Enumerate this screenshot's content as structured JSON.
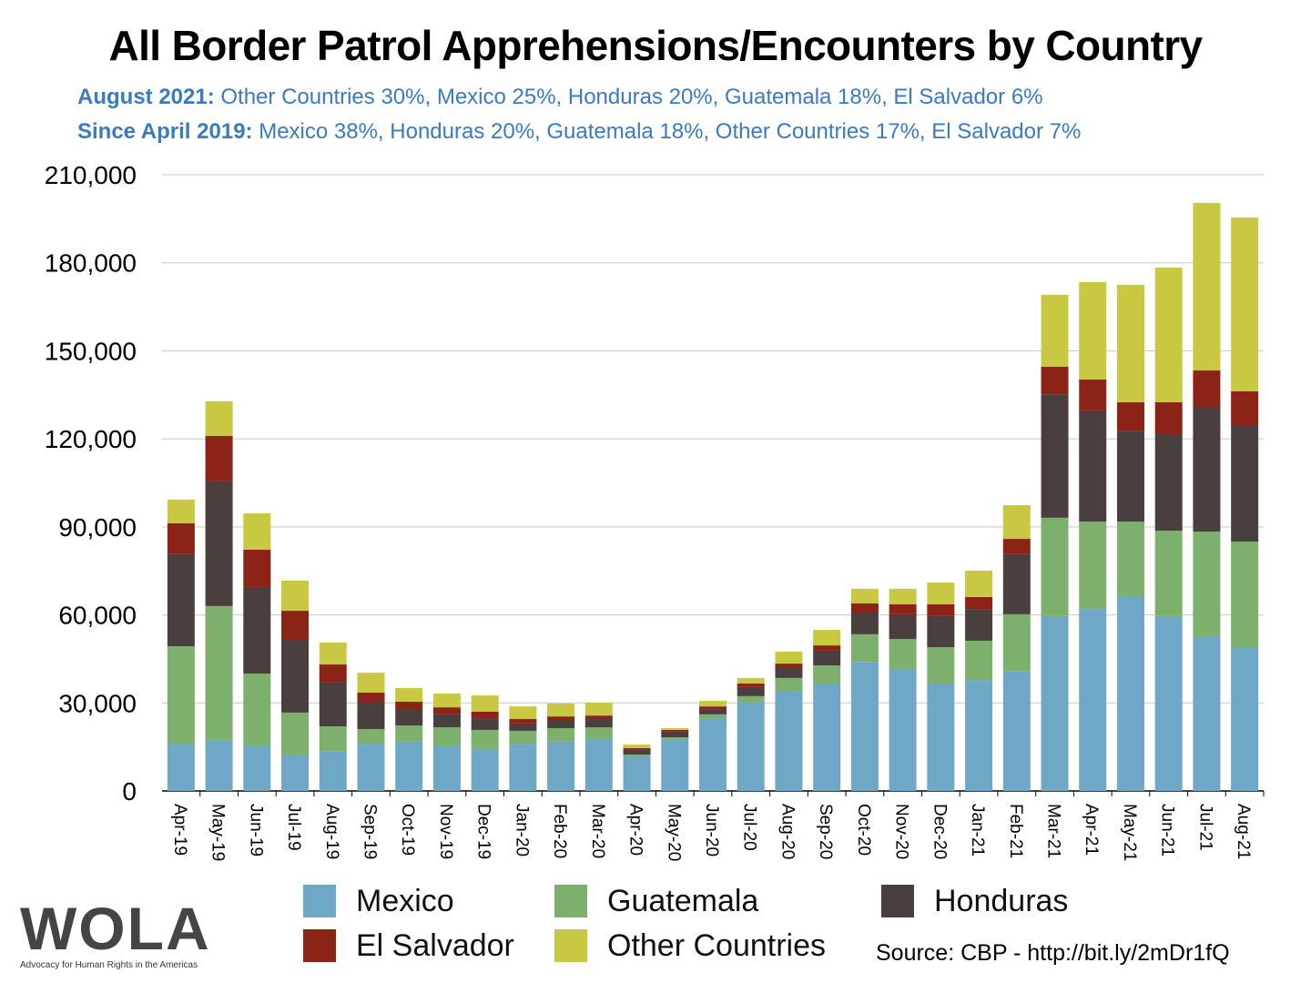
{
  "title": "All Border Patrol Apprehensions/Encounters by Country",
  "subtitles": [
    {
      "label": "August 2021:",
      "text": "Other Countries 30%, Mexico 25%, Honduras 20%, Guatemala 18%, El Salvador 6%"
    },
    {
      "label": "Since April 2019:",
      "text": "Mexico 38%, Honduras 20%, Guatemala 18%, Other Countries 17%, El Salvador 7%"
    }
  ],
  "source": "Source: CBP - http://bit.ly/2mDr1fQ",
  "logo": {
    "text": "WOLA",
    "tagline": "Advocacy for Human Rights in the Americas"
  },
  "chart_data": {
    "type": "bar",
    "stacked": true,
    "ylim": [
      0,
      210000
    ],
    "yticks": [
      0,
      30000,
      60000,
      90000,
      120000,
      150000,
      180000,
      210000
    ],
    "ytick_labels": [
      "0",
      "30,000",
      "60,000",
      "90,000",
      "120,000",
      "150,000",
      "180,000",
      "210,000"
    ],
    "grid": true,
    "legend_position": "bottom",
    "categories": [
      "Apr-19",
      "May-19",
      "Jun-19",
      "Jul-19",
      "Aug-19",
      "Sep-19",
      "Oct-19",
      "Nov-19",
      "Dec-19",
      "Jan-20",
      "Feb-20",
      "Mar-20",
      "Apr-20",
      "May-20",
      "Jun-20",
      "Jul-20",
      "Aug-20",
      "Sep-20",
      "Oct-20",
      "Nov-20",
      "Dec-20",
      "Jan-21",
      "Feb-21",
      "Mar-21",
      "Apr-21",
      "May-21",
      "Jun-21",
      "Jul-21",
      "Aug-21"
    ],
    "series": [
      {
        "name": "Mexico",
        "color": "#6fa7c7",
        "values": [
          16100,
          17400,
          15500,
          12400,
          13600,
          16100,
          16800,
          15500,
          14300,
          16100,
          16800,
          18000,
          11500,
          17700,
          24800,
          30400,
          34100,
          36600,
          44000,
          41600,
          36600,
          37800,
          40900,
          59600,
          62000,
          66400,
          59600,
          52700,
          49000
        ]
      },
      {
        "name": "Guatemala",
        "color": "#7db06c",
        "values": [
          33200,
          45600,
          24500,
          14300,
          8400,
          5000,
          5500,
          6200,
          6500,
          4400,
          4600,
          3700,
          900,
          600,
          1300,
          1900,
          4400,
          6200,
          9400,
          10200,
          12400,
          13400,
          19300,
          33500,
          29800,
          25400,
          29100,
          35700,
          36000
        ]
      },
      {
        "name": "Honduras",
        "color": "#4a3f3f",
        "values": [
          31400,
          42500,
          29500,
          24800,
          15200,
          9300,
          5300,
          4400,
          4000,
          2500,
          2800,
          2800,
          1600,
          1900,
          1800,
          3100,
          3700,
          5000,
          7400,
          8400,
          10600,
          10800,
          20500,
          42100,
          37900,
          31000,
          32900,
          42500,
          39700
        ]
      },
      {
        "name": "El Salvador",
        "color": "#8b2316",
        "values": [
          10500,
          15500,
          12700,
          9900,
          5900,
          3100,
          2800,
          2400,
          2200,
          1500,
          1200,
          1200,
          600,
          600,
          900,
          1200,
          1200,
          1800,
          3100,
          3400,
          4000,
          4100,
          5200,
          9400,
          10500,
          9700,
          10900,
          12400,
          11500
        ]
      },
      {
        "name": "Other Countries",
        "color": "#c9c843",
        "values": [
          8100,
          11800,
          12400,
          10300,
          7500,
          6800,
          4700,
          4700,
          5600,
          4300,
          4400,
          4400,
          1200,
          600,
          1900,
          1900,
          4100,
          5300,
          5000,
          5300,
          7400,
          9000,
          11500,
          24500,
          33200,
          40000,
          45900,
          57100,
          59200
        ]
      }
    ]
  }
}
